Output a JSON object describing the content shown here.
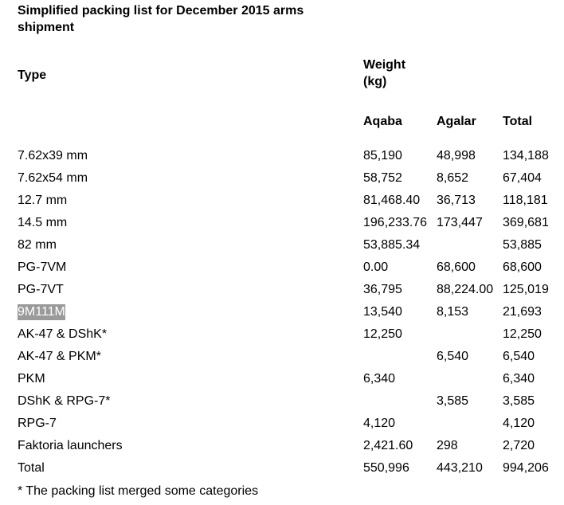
{
  "caption": "Simplified packing list for December 2015 arms shipment",
  "headers": {
    "type": "Type",
    "weight": "Weight (kg)",
    "aqaba": "Aqaba",
    "agalar": "Agalar",
    "total": "Total"
  },
  "rows": [
    {
      "type": "7.62x39 mm",
      "aqaba": "85,190",
      "agalar": "48,998",
      "total": "134,188"
    },
    {
      "type": "7.62x54 mm",
      "aqaba": "58,752",
      "agalar": "8,652",
      "total": "67,404"
    },
    {
      "type": "12.7 mm",
      "aqaba": "81,468.40",
      "agalar": "36,713",
      "total": "118,181"
    },
    {
      "type": "14.5 mm",
      "aqaba": "196,233.76",
      "agalar": "173,447",
      "total": "369,681"
    },
    {
      "type": "82 mm",
      "aqaba": "53,885.34",
      "agalar": "",
      "total": "53,885"
    },
    {
      "type": "PG-7VM",
      "aqaba": "0.00",
      "agalar": "68,600",
      "total": "68,600"
    },
    {
      "type": "PG-7VT",
      "aqaba": "36,795",
      "agalar": "88,224.00",
      "total": "125,019"
    },
    {
      "type": "9M111M",
      "aqaba": "13,540",
      "agalar": "8,153",
      "total": "21,693",
      "highlighted": true
    },
    {
      "type": "AK-47 & DShK*",
      "aqaba": "12,250",
      "agalar": "",
      "total": "12,250"
    },
    {
      "type": "AK-47 & PKM*",
      "aqaba": "",
      "agalar": "6,540",
      "total": "6,540"
    },
    {
      "type": "PKM",
      "aqaba": "6,340",
      "agalar": "",
      "total": "6,340"
    },
    {
      "type": "DShK & RPG-7*",
      "aqaba": "",
      "agalar": "3,585",
      "total": "3,585"
    },
    {
      "type": "RPG-7",
      "aqaba": "4,120",
      "agalar": "",
      "total": "4,120"
    },
    {
      "type": "Faktoria launchers",
      "aqaba": "2,421.60",
      "agalar": "298",
      "total": "2,720"
    },
    {
      "type": "Total",
      "aqaba": "550,996",
      "agalar": "443,210",
      "total": "994,206"
    }
  ],
  "footnote": "* The packing list merged some categories",
  "colors": {
    "highlight_background": "#9a9a9a",
    "highlight_text": "#ffffff"
  }
}
